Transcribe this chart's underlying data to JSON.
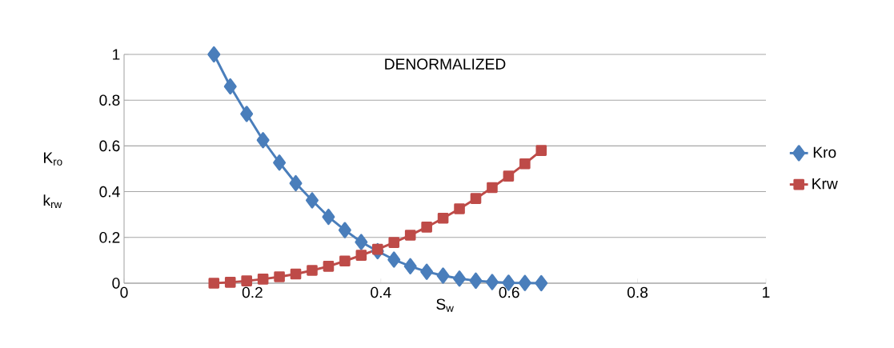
{
  "chart_data": {
    "type": "line",
    "title": "DENORMALIZED",
    "xlabel": "S$_{w}$",
    "ylabel": "K$_{ro}$ k$_{rw}$",
    "xlim": [
      0,
      1
    ],
    "xticks": [
      0,
      0.2,
      0.4,
      0.6,
      0.8,
      1
    ],
    "ylim": [
      0,
      1
    ],
    "yticks": [
      0,
      0.2,
      0.4,
      0.6,
      0.8,
      1
    ],
    "grid": "y",
    "legend": "right",
    "line_style": "solid",
    "x": [
      0.14,
      0.1655,
      0.191,
      0.2165,
      0.242,
      0.2675,
      0.293,
      0.3185,
      0.344,
      0.3695,
      0.395,
      0.4205,
      0.446,
      0.4715,
      0.497,
      0.5225,
      0.548,
      0.5735,
      0.599,
      0.6245,
      0.65
    ],
    "series": [
      {
        "name": "Kro",
        "color": "#4a7ebb",
        "marker": "diamond",
        "values": [
          1,
          0.86,
          0.74,
          0.625,
          0.527,
          0.437,
          0.362,
          0.29,
          0.232,
          0.18,
          0.14,
          0.103,
          0.074,
          0.05,
          0.033,
          0.02,
          0.011,
          0.005,
          0.002,
          0.001,
          0
        ]
      },
      {
        "name": "Krw",
        "color": "#be4b48",
        "marker": "square",
        "values": [
          0,
          0.004,
          0.01,
          0.018,
          0.028,
          0.04,
          0.056,
          0.074,
          0.097,
          0.122,
          0.148,
          0.178,
          0.21,
          0.245,
          0.284,
          0.325,
          0.37,
          0.418,
          0.468,
          0.522,
          0.58
        ]
      }
    ]
  }
}
